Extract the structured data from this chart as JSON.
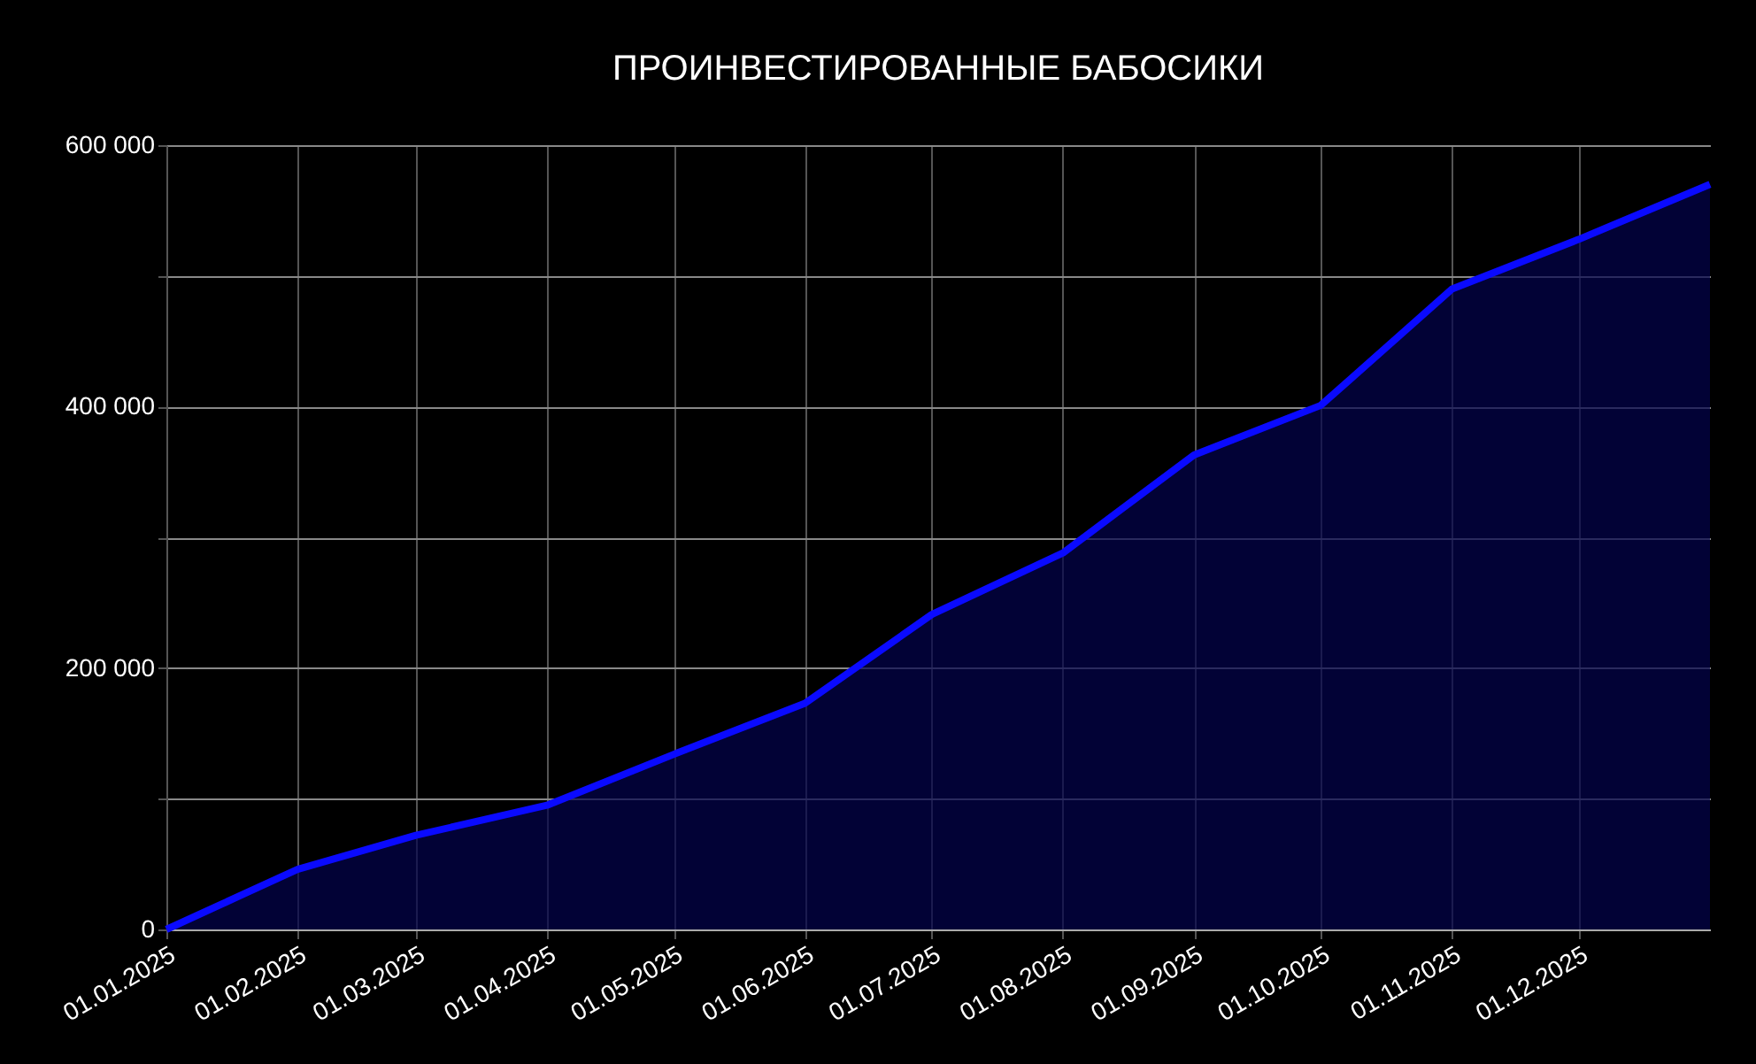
{
  "chart_data": {
    "type": "area",
    "title": "ПРОИНВЕСТИРОВАННЫЕ БАБОСИКИ",
    "x": [
      "2025-01-01",
      "2025-02-01",
      "2025-03-01",
      "2025-04-01",
      "2025-05-01",
      "2025-06-01",
      "2025-07-01",
      "2025-08-01",
      "2025-09-01",
      "2025-10-01",
      "2025-11-01",
      "2025-12-01",
      "2026-01-01"
    ],
    "series": [
      {
        "color": "#0a0aff",
        "values": [
          0,
          46000,
          72000,
          95000,
          134000,
          173000,
          241000,
          288000,
          363000,
          401000,
          490000,
          528000,
          570000
        ]
      }
    ],
    "xlim": [
      "2025-01-01",
      "2026-01-01"
    ],
    "xticks": [
      {
        "value": "2025-01-01",
        "label": "01.01.2025"
      },
      {
        "value": "2025-02-01",
        "label": "01.02.2025"
      },
      {
        "value": "2025-03-01",
        "label": "01.03.2025"
      },
      {
        "value": "2025-04-01",
        "label": "01.04.2025"
      },
      {
        "value": "2025-05-01",
        "label": "01.05.2025"
      },
      {
        "value": "2025-06-01",
        "label": "01.06.2025"
      },
      {
        "value": "2025-07-01",
        "label": "01.07.2025"
      },
      {
        "value": "2025-08-01",
        "label": "01.08.2025"
      },
      {
        "value": "2025-09-01",
        "label": "01.09.2025"
      },
      {
        "value": "2025-10-01",
        "label": "01.10.2025"
      },
      {
        "value": "2025-11-01",
        "label": "01.11.2025"
      },
      {
        "value": "2025-12-01",
        "label": "01.12.2025"
      }
    ],
    "ylim": [
      0,
      600000
    ],
    "yticks": [
      0,
      {
        "value": 100000,
        "label": null
      },
      {
        "value": 200000,
        "label": "200 000"
      },
      {
        "value": 300000,
        "label": null
      },
      {
        "value": 400000,
        "label": "400 000"
      },
      {
        "value": 500000,
        "label": null
      },
      {
        "value": 600000,
        "label": "600 000"
      }
    ],
    "grid": true,
    "marker": "none",
    "line_style": "solid"
  }
}
